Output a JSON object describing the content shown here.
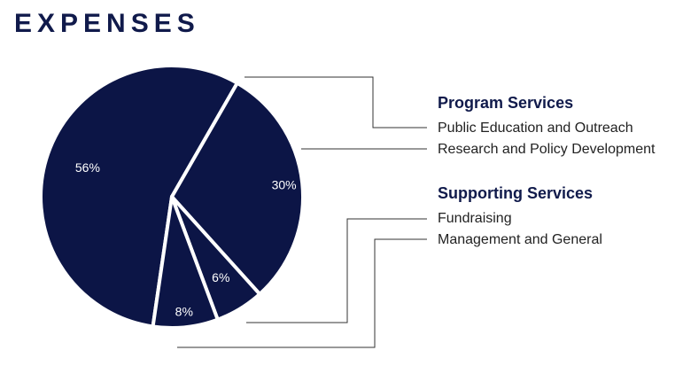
{
  "title": "EXPENSES",
  "colors": {
    "navy": "#0c1546",
    "separator": "#ffffff",
    "leader": "#333333"
  },
  "chart_data": {
    "type": "pie",
    "slices": [
      {
        "name": "Public Education and Outreach",
        "value": 56,
        "label": "56%"
      },
      {
        "name": "Research and Policy Development",
        "value": 30,
        "label": "30%"
      },
      {
        "name": "Fundraising",
        "value": 6,
        "label": "6%"
      },
      {
        "name": "Management and General",
        "value": 8,
        "label": "8%"
      }
    ]
  },
  "legend": {
    "program_title": "Program Services",
    "program_items": [
      "Public Education and Outreach",
      "Research and Policy Development"
    ],
    "supporting_title": "Supporting Services",
    "supporting_items": [
      "Fundraising",
      "Management and General"
    ]
  }
}
